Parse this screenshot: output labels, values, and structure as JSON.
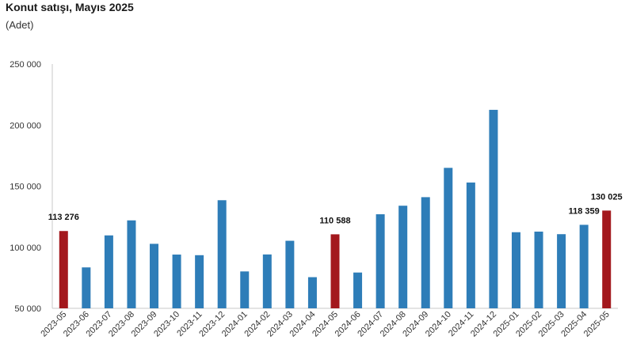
{
  "chart_data": {
    "type": "bar",
    "title": "Konut satışı, Mayıs 2025",
    "subtitle": "(Adet)",
    "categories": [
      "2023-05",
      "2023-06",
      "2023-07",
      "2023-08",
      "2023-09",
      "2023-10",
      "2023-11",
      "2023-12",
      "2024-01",
      "2024-02",
      "2024-03",
      "2024-04",
      "2024-05",
      "2024-06",
      "2024-07",
      "2024-08",
      "2024-09",
      "2024-10",
      "2024-11",
      "2024-12",
      "2025-01",
      "2025-02",
      "2025-03",
      "2025-04",
      "2025-05"
    ],
    "values": [
      113276,
      83500,
      109700,
      122000,
      102800,
      94000,
      93500,
      138500,
      80200,
      94100,
      105300,
      75500,
      110588,
      79300,
      127000,
      134000,
      141000,
      165000,
      153000,
      212500,
      112300,
      112800,
      110700,
      118359,
      130025
    ],
    "highlight": [
      true,
      false,
      false,
      false,
      false,
      false,
      false,
      false,
      false,
      false,
      false,
      false,
      true,
      false,
      false,
      false,
      false,
      false,
      false,
      false,
      false,
      false,
      false,
      false,
      true
    ],
    "data_labels": {
      "0": "113 276",
      "12": "110 588",
      "23": "118 359",
      "24": "130 025"
    },
    "ylim": [
      50000,
      250000
    ],
    "yticks": [
      50000,
      100000,
      150000,
      200000,
      250000
    ],
    "ytick_labels": [
      "50 000",
      "100 000",
      "150 000",
      "200 000",
      "250 000"
    ],
    "colors": {
      "bar": "#2e7db8",
      "highlight": "#a3181d",
      "axis": "#c8c8c8"
    },
    "grid": false,
    "legend": "none"
  }
}
